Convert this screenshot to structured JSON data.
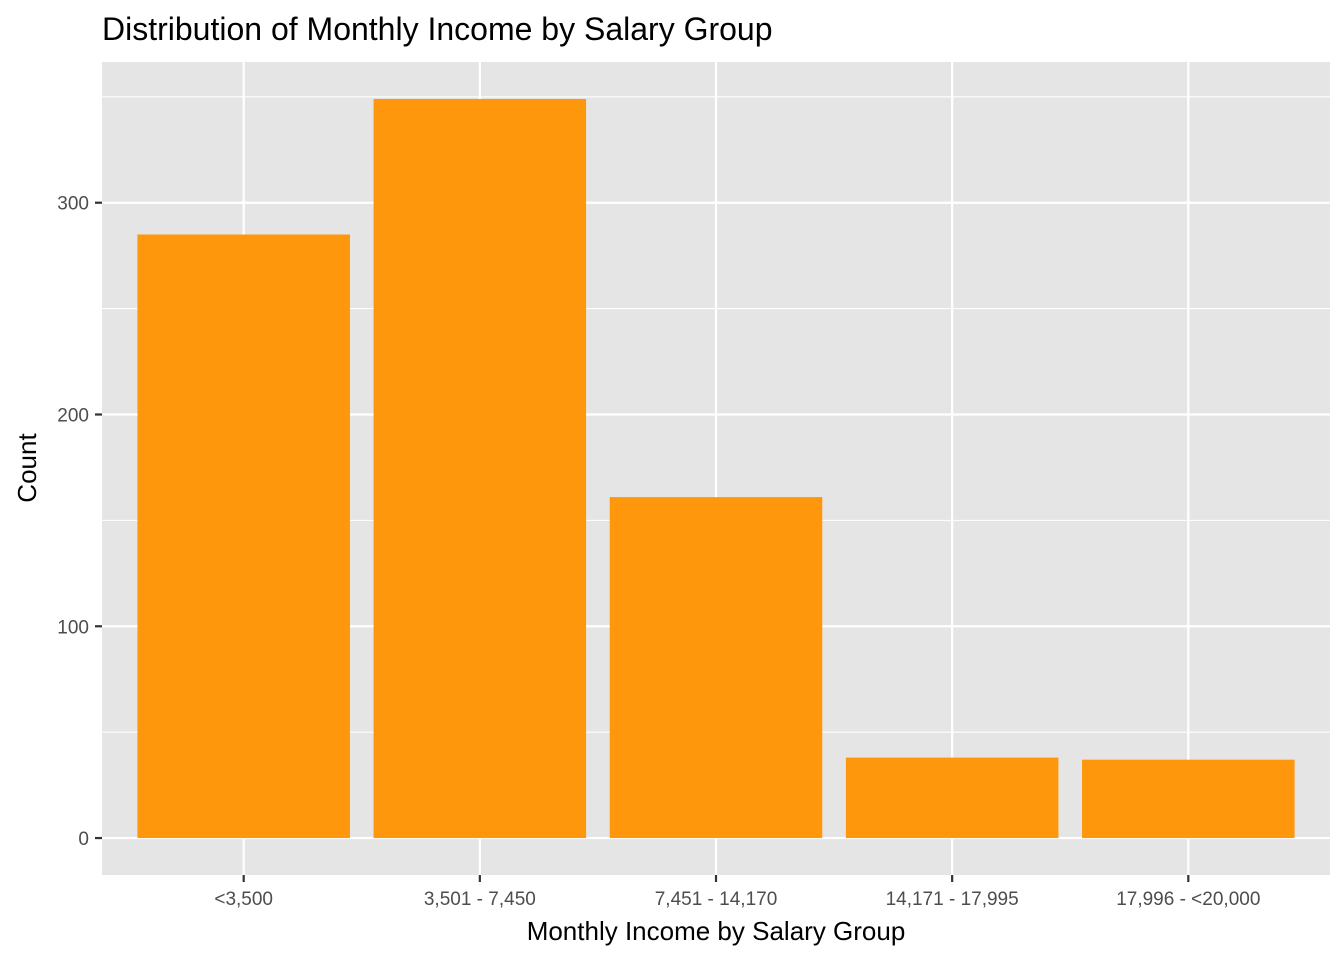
{
  "chart_data": {
    "type": "bar",
    "title": "Distribution of Monthly Income by Salary Group",
    "xlabel": "Monthly Income by Salary Group",
    "ylabel": "Count",
    "categories": [
      "<3,500",
      "3,501 - 7,450",
      "7,451 - 14,170",
      "14,171 - 17,995",
      "17,996 - <20,000"
    ],
    "values": [
      285,
      349,
      161,
      38,
      37
    ],
    "ylim": [
      -17.45,
      366.45
    ],
    "yticks": [
      0,
      100,
      200,
      300
    ],
    "ytick_labels": [
      "0",
      "100",
      "200",
      "300"
    ],
    "grid": true,
    "legend": "none",
    "colors": {
      "bar": "#FE970C",
      "panel": "#E5E5E5",
      "grid": "#FFFFFF",
      "tick_text": "#4D4D4D",
      "tick_mark": "#333333"
    }
  }
}
